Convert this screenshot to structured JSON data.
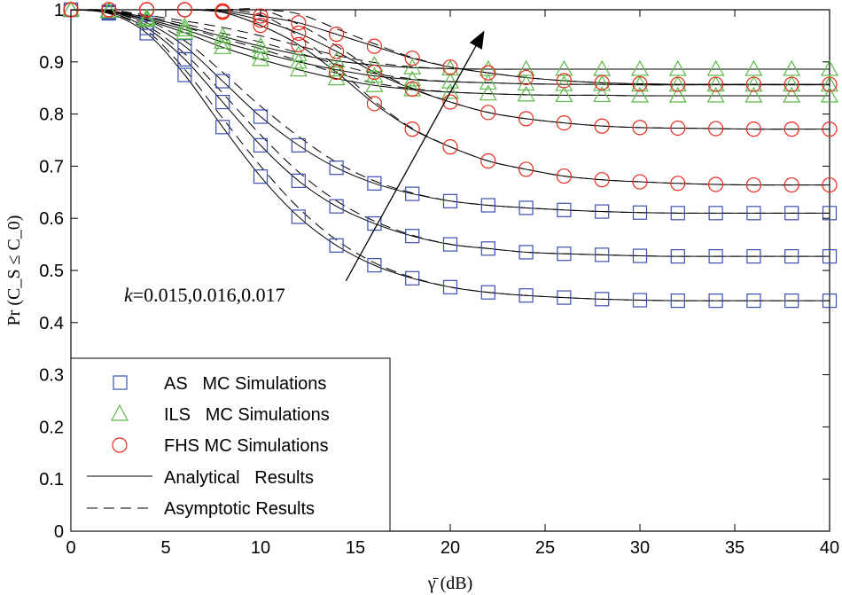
{
  "chart_data": {
    "type": "line",
    "title": "",
    "xlabel": "γ̄ (dB)",
    "ylabel": "Pr (C_S ≤ C_0)",
    "xlim": [
      0,
      40
    ],
    "ylim": [
      0,
      1
    ],
    "x_ticks": [
      "0",
      "5",
      "10",
      "15",
      "20",
      "25",
      "30",
      "35",
      "40"
    ],
    "y_ticks": [
      "0",
      "0.1",
      "0.2",
      "0.3",
      "0.4",
      "0.5",
      "0.6",
      "0.7",
      "0.8",
      "0.9",
      "1"
    ],
    "x_tick_values": [
      0,
      5,
      10,
      15,
      20,
      25,
      30,
      35,
      40
    ],
    "y_tick_values": [
      0,
      0.1,
      0.2,
      0.3,
      0.4,
      0.5,
      0.6,
      0.7,
      0.8,
      0.9,
      1
    ],
    "annotation": {
      "text": "k=0.015,0.016,0.017",
      "k_part": "k",
      "values_part": "=0.015,0.016,0.017",
      "arrow_from": [
        14.5,
        0.48
      ],
      "arrow_to": [
        21.8,
        0.96
      ]
    },
    "legend": {
      "placement": "bottom-left",
      "entries": [
        {
          "label": "AS   MC Simulations",
          "marker": "square",
          "color": "#3a4fb0"
        },
        {
          "label": "ILS   MC Simulations",
          "marker": "triangle",
          "color": "#5fb84a"
        },
        {
          "label": "FHS MC Simulations",
          "marker": "circle",
          "color": "#e8291c"
        },
        {
          "label": "Analytical   Results",
          "marker": "solid-line",
          "color": "#000000"
        },
        {
          "label": "Asymptotic Results",
          "marker": "dashed-line",
          "color": "#000000"
        }
      ]
    },
    "x": [
      0,
      2,
      4,
      6,
      8,
      10,
      12,
      14,
      16,
      18,
      20,
      22,
      24,
      26,
      28,
      30,
      32,
      34,
      36,
      38,
      40
    ],
    "series": [
      {
        "name": "AS k=0.015",
        "scheme": "AS",
        "marker": "square",
        "color": "#3a4fb0",
        "values": [
          1,
          0.993,
          0.955,
          0.875,
          0.775,
          0.68,
          0.603,
          0.548,
          0.51,
          0.485,
          0.468,
          0.458,
          0.452,
          0.448,
          0.445,
          0.443,
          0.442,
          0.442,
          0.442,
          0.442,
          0.442
        ]
      },
      {
        "name": "AS k=0.016",
        "scheme": "AS",
        "marker": "square",
        "color": "#3a4fb0",
        "values": [
          1,
          0.995,
          0.965,
          0.905,
          0.823,
          0.74,
          0.672,
          0.623,
          0.59,
          0.566,
          0.55,
          0.542,
          0.535,
          0.532,
          0.53,
          0.528,
          0.527,
          0.527,
          0.527,
          0.527,
          0.527
        ]
      },
      {
        "name": "AS k=0.017",
        "scheme": "AS",
        "marker": "square",
        "color": "#3a4fb0",
        "values": [
          1,
          0.996,
          0.975,
          0.93,
          0.863,
          0.795,
          0.74,
          0.697,
          0.667,
          0.647,
          0.633,
          0.625,
          0.62,
          0.616,
          0.613,
          0.611,
          0.61,
          0.61,
          0.61,
          0.61,
          0.61
        ]
      },
      {
        "name": "ILS k=0.015",
        "scheme": "ILS",
        "marker": "triangle",
        "color": "#5fb84a",
        "values": [
          1,
          0.997,
          0.98,
          0.956,
          0.928,
          0.905,
          0.885,
          0.868,
          0.855,
          0.847,
          0.842,
          0.839,
          0.837,
          0.836,
          0.836,
          0.835,
          0.835,
          0.835,
          0.835,
          0.835,
          0.835
        ]
      },
      {
        "name": "ILS k=0.016",
        "scheme": "ILS",
        "marker": "triangle",
        "color": "#5fb84a",
        "values": [
          1,
          0.997,
          0.982,
          0.962,
          0.938,
          0.918,
          0.9,
          0.885,
          0.873,
          0.866,
          0.862,
          0.86,
          0.858,
          0.857,
          0.857,
          0.856,
          0.856,
          0.856,
          0.856,
          0.856,
          0.856
        ]
      },
      {
        "name": "ILS k=0.017",
        "scheme": "ILS",
        "marker": "triangle",
        "color": "#5fb84a",
        "values": [
          1,
          0.998,
          0.985,
          0.968,
          0.949,
          0.93,
          0.914,
          0.902,
          0.894,
          0.889,
          0.887,
          0.886,
          0.886,
          0.886,
          0.886,
          0.886,
          0.886,
          0.886,
          0.886,
          0.886,
          0.886
        ]
      },
      {
        "name": "FHS k=0.015",
        "scheme": "FHS",
        "marker": "circle",
        "color": "#e8291c",
        "values": [
          1,
          1,
          1,
          1,
          0.995,
          0.97,
          0.933,
          0.88,
          0.82,
          0.771,
          0.737,
          0.71,
          0.694,
          0.681,
          0.674,
          0.67,
          0.667,
          0.665,
          0.664,
          0.664,
          0.664
        ]
      },
      {
        "name": "FHS k=0.016",
        "scheme": "FHS",
        "marker": "circle",
        "color": "#e8291c",
        "values": [
          1,
          1,
          1,
          1,
          0.996,
          0.98,
          0.955,
          0.92,
          0.88,
          0.848,
          0.823,
          0.803,
          0.791,
          0.783,
          0.777,
          0.774,
          0.773,
          0.772,
          0.771,
          0.771,
          0.771
        ]
      },
      {
        "name": "FHS k=0.017",
        "scheme": "FHS",
        "marker": "circle",
        "color": "#e8291c",
        "values": [
          1,
          1,
          1,
          1,
          0.998,
          0.988,
          0.975,
          0.953,
          0.93,
          0.907,
          0.89,
          0.879,
          0.87,
          0.864,
          0.86,
          0.858,
          0.857,
          0.857,
          0.857,
          0.857,
          0.857
        ]
      }
    ]
  }
}
